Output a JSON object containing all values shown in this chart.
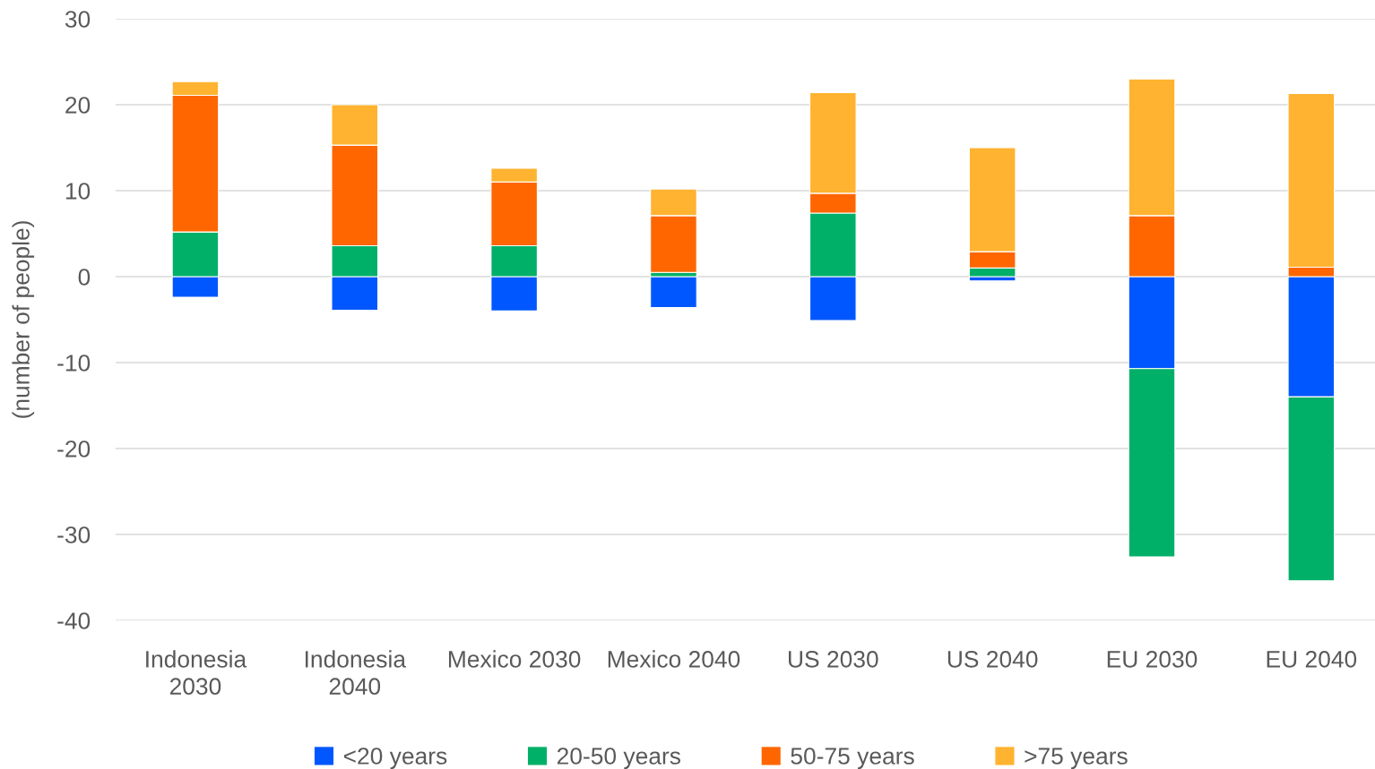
{
  "chart_data": {
    "type": "bar",
    "stacked": true,
    "ylabel": "(number of people)",
    "categories": [
      "Indonesia 2030",
      "Indonesia 2040",
      "Mexico 2030",
      "Mexico 2040",
      "US 2030",
      "US 2040",
      "EU 2030",
      "EU 2040"
    ],
    "series": [
      {
        "name": "<20 years",
        "color": "#0057ff",
        "values": [
          -2.4,
          -3.9,
          -4.0,
          -3.6,
          -5.1,
          -0.5,
          -10.7,
          -14.0
        ]
      },
      {
        "name": "20-50 years",
        "color": "#00b068",
        "values": [
          5.2,
          3.6,
          3.6,
          0.5,
          7.4,
          1.0,
          -21.9,
          -21.4
        ]
      },
      {
        "name": "50-75 years",
        "color": "#ff6600",
        "values": [
          15.9,
          11.7,
          7.4,
          6.6,
          2.3,
          1.9,
          7.1,
          1.1
        ]
      },
      {
        "name": ">75 years",
        "color": "#ffb330",
        "values": [
          1.6,
          4.7,
          1.6,
          3.1,
          11.7,
          12.1,
          15.9,
          20.2
        ]
      }
    ],
    "ylim": [
      -40,
      30
    ],
    "yticks": [
      -40,
      -30,
      -20,
      -10,
      0,
      10,
      20,
      30
    ],
    "grid": "y",
    "legend": "bottom"
  }
}
